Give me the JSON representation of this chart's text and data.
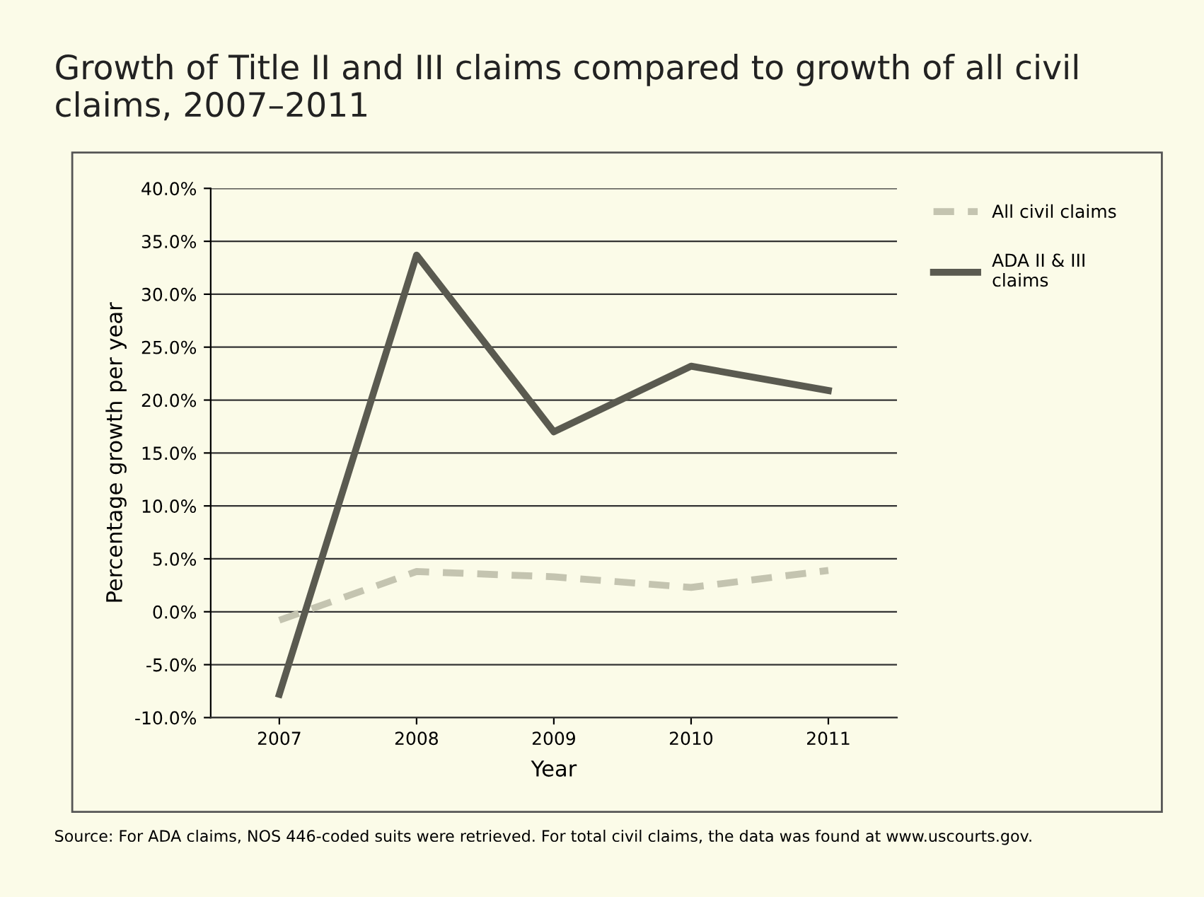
{
  "chart_data": {
    "type": "line",
    "title": "Growth of Title II and III claims compared to growth of all civil claims, 2007–2011",
    "xlabel": "Year",
    "ylabel": "Percentage growth per year",
    "categories": [
      "2007",
      "2008",
      "2009",
      "2010",
      "2011"
    ],
    "series": [
      {
        "name": "All civil claims",
        "color": "#c4c4b0",
        "line_style": "dashed",
        "values": [
          -0.8,
          3.8,
          3.3,
          2.3,
          3.9
        ]
      },
      {
        "name": "ADA II & III claims",
        "color": "#5a5a50",
        "line_style": "solid",
        "values": [
          -7.8,
          33.7,
          17.0,
          23.2,
          20.9
        ]
      }
    ],
    "ylim": [
      -10,
      40
    ],
    "yticks": [
      {
        "value": -10,
        "label": "-10.0%"
      },
      {
        "value": -5,
        "label": "-5.0%"
      },
      {
        "value": 0,
        "label": "0.0%"
      },
      {
        "value": 5,
        "label": "5.0%"
      },
      {
        "value": 10,
        "label": "10.0%"
      },
      {
        "value": 15,
        "label": "15.0%"
      },
      {
        "value": 20,
        "label": "20.0%"
      },
      {
        "value": 25,
        "label": "25.0%"
      },
      {
        "value": 30,
        "label": "30.0%"
      },
      {
        "value": 35,
        "label": "35.0%"
      },
      {
        "value": 40,
        "label": "40.0%"
      }
    ],
    "grid": "y",
    "legend": "right",
    "marker": "none",
    "annotations": [
      "Source: For ADA claims, NOS 446-coded suits were retrieved. For total civil claims, the data was found at www.uscourts.gov."
    ]
  }
}
